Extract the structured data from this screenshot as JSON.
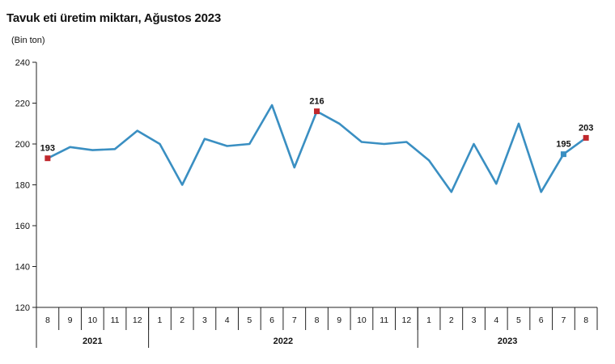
{
  "chart_data": {
    "type": "line",
    "title": "Tavuk eti üretim miktarı, Ağustos 2023",
    "ylabel": "(Bin ton)",
    "xlabel": "",
    "ylim": [
      120,
      240
    ],
    "yticks": [
      "120",
      "140",
      "160",
      "180",
      "200",
      "220",
      "240"
    ],
    "categories": [
      "8",
      "9",
      "10",
      "11",
      "12",
      "1",
      "2",
      "3",
      "4",
      "5",
      "6",
      "7",
      "8",
      "9",
      "10",
      "11",
      "12",
      "1",
      "2",
      "3",
      "4",
      "5",
      "6",
      "7",
      "8"
    ],
    "years": [
      {
        "label": "2021",
        "start": 0,
        "end": 4
      },
      {
        "label": "2022",
        "start": 5,
        "end": 16
      },
      {
        "label": "2023",
        "start": 17,
        "end": 24
      }
    ],
    "series": [
      {
        "name": "Tavuk eti üretim miktarı",
        "color": "#3a8fc2",
        "values": [
          193,
          198.5,
          197,
          197.5,
          206.5,
          200,
          180,
          202.5,
          199,
          200,
          219,
          188.5,
          216,
          210,
          201,
          200,
          201,
          192,
          176.5,
          200,
          180.5,
          210,
          176.5,
          195,
          203
        ]
      }
    ],
    "highlight_points": [
      {
        "index": 0,
        "label": "193",
        "color": "#c0282d"
      },
      {
        "index": 12,
        "label": "216",
        "color": "#c0282d"
      },
      {
        "index": 23,
        "label": "195",
        "color": "#3a8fc2"
      },
      {
        "index": 24,
        "label": "203",
        "color": "#c0282d"
      }
    ]
  }
}
